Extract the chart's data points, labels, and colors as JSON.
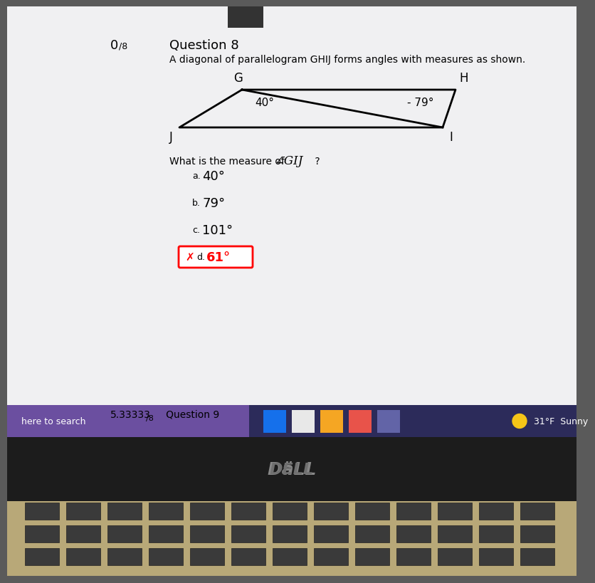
{
  "screen_bg": "#f0f0f2",
  "outer_bg": "#5a5a5a",
  "laptop_bezel_color": "#2a2a2a",
  "keyboard_color": "#b8a878",
  "taskbar_color": "#2c2b5a",
  "taskbar_search_color": "#6b4fa0",
  "score_text": "0",
  "score_sub": "/8",
  "question_number": "Question 8",
  "question_text": "A diagonal of parallelogram GHIJ forms angles with measures as shown.",
  "angle_G": "40°",
  "angle_H": "79°",
  "question_ask": "What is the measure of ",
  "angle_symbol": "∠GIJ",
  "question_mark": " ?",
  "choices": [
    {
      "prefix": "a.",
      "value": "40°",
      "selected": false,
      "wrong": false
    },
    {
      "prefix": "b.",
      "value": "79°",
      "selected": false,
      "wrong": false
    },
    {
      "prefix": "c.",
      "value": "101°",
      "selected": false,
      "wrong": false
    },
    {
      "prefix": "d.",
      "value": "61°",
      "selected": true,
      "wrong": true
    }
  ],
  "next_score": "5.33333",
  "next_score_sub": "/8",
  "next_label": "   Question 9",
  "taskbar_search": "here to search",
  "weather_text": "31°F  Sunny",
  "dell_color": "#888888"
}
